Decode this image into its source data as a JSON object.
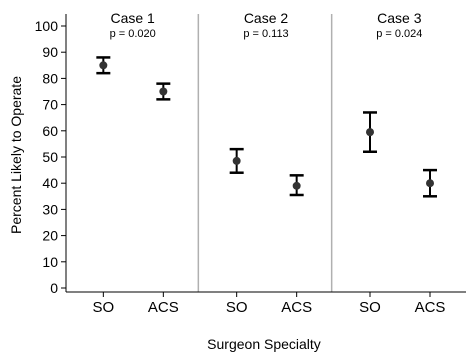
{
  "chart_data": {
    "type": "scatter",
    "xlabel": "Surgeon Specialty",
    "ylabel": "Percent Likely to Operate",
    "ylim": [
      0,
      100
    ],
    "yticks": [
      0,
      10,
      20,
      30,
      40,
      50,
      60,
      70,
      80,
      90,
      100
    ],
    "grid": false,
    "panels": [
      {
        "title": "Case 1",
        "subtitle": "p = 0.020",
        "categories": [
          "SO",
          "ACS"
        ],
        "values": [
          85,
          75
        ],
        "lower": [
          82,
          72
        ],
        "upper": [
          88,
          78
        ]
      },
      {
        "title": "Case 2",
        "subtitle": "p = 0.113",
        "categories": [
          "SO",
          "ACS"
        ],
        "values": [
          48.5,
          39
        ],
        "lower": [
          44,
          35.5
        ],
        "upper": [
          53,
          43
        ]
      },
      {
        "title": "Case 3",
        "subtitle": "p = 0.024",
        "categories": [
          "SO",
          "ACS"
        ],
        "values": [
          59.5,
          40
        ],
        "lower": [
          52,
          35
        ],
        "upper": [
          67,
          45
        ]
      }
    ],
    "colors": {
      "points": "#333333",
      "errorbars": "#000000",
      "separators": "#b0b0b0",
      "axis": "#000000"
    }
  }
}
